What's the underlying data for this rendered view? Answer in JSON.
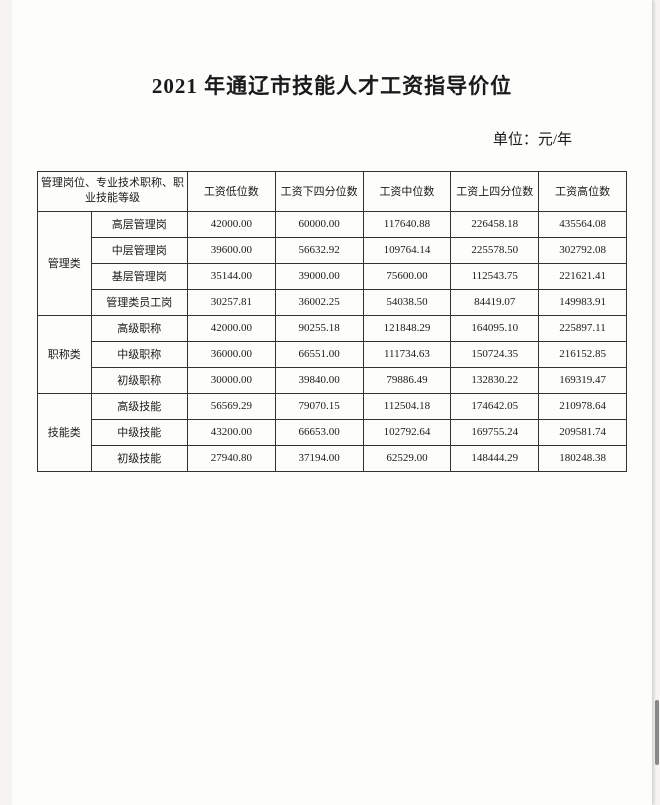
{
  "title": "2021 年通辽市技能人才工资指导价位",
  "unit": "单位：元/年",
  "table": {
    "header": {
      "category_header": "管理岗位、专业技术职称、职业技能等级",
      "cols": [
        "工资低位数",
        "工资下四分位数",
        "工资中位数",
        "工资上四分位数",
        "工资高位数"
      ]
    },
    "groups": [
      {
        "name": "管理类",
        "rows": [
          {
            "sub": "高层管理岗",
            "c": [
              "42000.00",
              "60000.00",
              "117640.88",
              "226458.18",
              "435564.08"
            ]
          },
          {
            "sub": "中层管理岗",
            "c": [
              "39600.00",
              "56632.92",
              "109764.14",
              "225578.50",
              "302792.08"
            ]
          },
          {
            "sub": "基层管理岗",
            "c": [
              "35144.00",
              "39000.00",
              "75600.00",
              "112543.75",
              "221621.41"
            ]
          },
          {
            "sub": "管理类员工岗",
            "c": [
              "30257.81",
              "36002.25",
              "54038.50",
              "84419.07",
              "149983.91"
            ]
          }
        ]
      },
      {
        "name": "职称类",
        "rows": [
          {
            "sub": "高级职称",
            "c": [
              "42000.00",
              "90255.18",
              "121848.29",
              "164095.10",
              "225897.11"
            ]
          },
          {
            "sub": "中级职称",
            "c": [
              "36000.00",
              "66551.00",
              "111734.63",
              "150724.35",
              "216152.85"
            ]
          },
          {
            "sub": "初级职称",
            "c": [
              "30000.00",
              "39840.00",
              "79886.49",
              "132830.22",
              "169319.47"
            ]
          }
        ]
      },
      {
        "name": "技能类",
        "rows": [
          {
            "sub": "高级技能",
            "c": [
              "56569.29",
              "79070.15",
              "112504.18",
              "174642.05",
              "210978.64"
            ]
          },
          {
            "sub": "中级技能",
            "c": [
              "43200.00",
              "66653.00",
              "102792.64",
              "169755.24",
              "209581.74"
            ]
          },
          {
            "sub": "初级技能",
            "c": [
              "27940.80",
              "37194.00",
              "62529.00",
              "148444.29",
              "180248.38"
            ]
          }
        ]
      }
    ]
  },
  "styles": {
    "background_color": "#fdfdfb",
    "outer_background": "#f5f4f0",
    "text_color": "#1a1a1a",
    "border_color": "#333333",
    "title_fontsize": 21,
    "cell_fontsize": 11,
    "unit_fontsize": 15
  }
}
